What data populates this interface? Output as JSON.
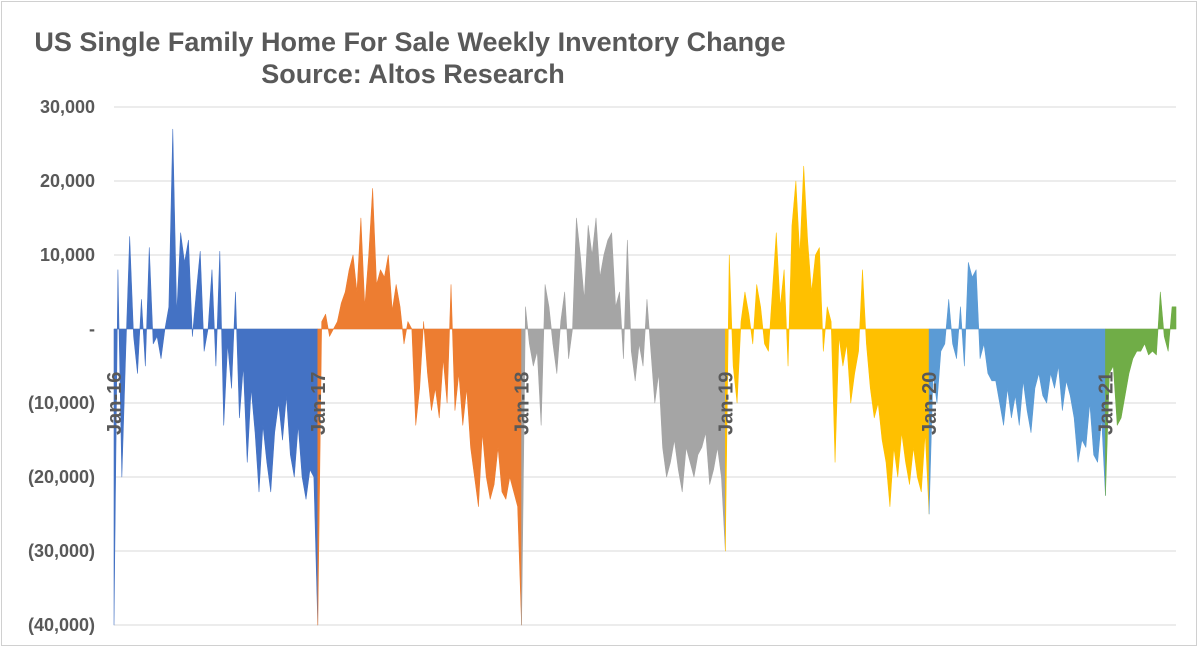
{
  "chart_data": {
    "type": "area",
    "title": "US Single Family Home For Sale Weekly Inventory Change",
    "subtitle": "Source: Altos Research",
    "xlabel": "",
    "ylabel": "",
    "ylim": [
      -40000,
      30000
    ],
    "yticks": [
      30000,
      20000,
      10000,
      0,
      -10000,
      -20000,
      -30000,
      -40000
    ],
    "ytick_labels": [
      "30,000",
      "20,000",
      "10,000",
      "-",
      "(10,000)",
      "(20,000)",
      "(30,000)",
      "(40,000)"
    ],
    "x_tick_labels": [
      "Jan-16",
      "Jan-17",
      "Jan-18",
      "Jan-19",
      "Jan-20",
      "Jan-21"
    ],
    "grid": true,
    "legend": "none",
    "series": [
      {
        "label": "Jan-16",
        "color": "#4472c4",
        "values": [
          -40000,
          8000,
          -20000,
          -3000,
          12500,
          -1000,
          -6000,
          4000,
          -5000,
          11000,
          -2000,
          -1000,
          -4000,
          0,
          3000,
          27000,
          2000,
          13000,
          9000,
          12000,
          -1000,
          5000,
          10500,
          -3000,
          0,
          8000,
          -5000,
          10500,
          -13000,
          -2000,
          -8000,
          5000,
          -12000,
          -5000,
          -18000,
          -8000,
          -14000,
          -22000,
          -13000,
          -18000,
          -22000,
          -14000,
          -10000,
          -15000,
          -9000,
          -17000,
          -20000,
          -13000,
          -20000,
          -23000,
          -19000,
          -20000
        ]
      },
      {
        "label": "Jan-17",
        "color": "#ed7d31",
        "values": [
          -40000,
          1000,
          2000,
          -1000,
          0,
          1000,
          3500,
          5000,
          8000,
          10000,
          5000,
          15000,
          3000,
          10000,
          19000,
          6000,
          8000,
          7000,
          10000,
          2500,
          6000,
          3000,
          -2000,
          1000,
          0,
          -13000,
          -8000,
          1000,
          -6000,
          -11000,
          -8000,
          -12000,
          -4000,
          -10000,
          6000,
          -11000,
          -6000,
          -13000,
          -8000,
          -16000,
          -20000,
          -24000,
          -14000,
          -20000,
          -23000,
          -21000,
          -16000,
          -22000,
          -23000,
          -20000,
          -22000,
          -24000
        ]
      },
      {
        "label": "Jan-18",
        "color": "#a5a5a5",
        "values": [
          -40000,
          3000,
          -2000,
          -5000,
          -3000,
          -13000,
          6000,
          3000,
          -2000,
          -6000,
          1000,
          5000,
          -4000,
          0,
          15000,
          10000,
          4000,
          14000,
          10000,
          15000,
          7000,
          10000,
          12000,
          13000,
          3000,
          5000,
          -4000,
          12000,
          -3000,
          -7000,
          -2000,
          -5000,
          4000,
          -3000,
          -10000,
          -6000,
          -16000,
          -20000,
          -18000,
          -15000,
          -19000,
          -22000,
          -16000,
          -18000,
          -20000,
          -17000,
          -16000,
          -14000,
          -21000,
          -19000,
          -16000,
          -20000
        ]
      },
      {
        "label": "Jan-19",
        "color": "#ffc000",
        "values": [
          -30000,
          10000,
          -5000,
          -10000,
          1000,
          5000,
          2000,
          -2000,
          6000,
          3000,
          -2000,
          -3000,
          5000,
          13000,
          3000,
          8000,
          -5000,
          14000,
          20000,
          10000,
          22000,
          12000,
          5000,
          10000,
          11000,
          -3000,
          3000,
          1000,
          -18000,
          -1000,
          -5000,
          -2000,
          -10000,
          -6000,
          -3000,
          8000,
          -2000,
          -8000,
          -12000,
          -10000,
          -15000,
          -18000,
          -24000,
          -16000,
          -20000,
          -14000,
          -18000,
          -21000,
          -16000,
          -20000,
          -22000,
          -14000
        ]
      },
      {
        "label": "Jan-20",
        "color": "#5b9bd5",
        "values": [
          -25000,
          -6000,
          -10000,
          -3000,
          -2000,
          4000,
          -2000,
          -4000,
          3000,
          -5000,
          9000,
          7000,
          8000,
          -4000,
          -2000,
          -6000,
          -7000,
          -7000,
          -10000,
          -13000,
          -8000,
          -12000,
          -9000,
          -13000,
          -7000,
          -11000,
          -14000,
          -8000,
          -6000,
          -9000,
          -10000,
          -6000,
          -8000,
          -5000,
          -11000,
          -7000,
          -9000,
          -12000,
          -18000,
          -15000,
          -16000,
          -10000,
          -17000,
          -18000,
          -12000
        ]
      },
      {
        "label": "Jan-21",
        "color": "#70ad47",
        "values": [
          -22500,
          -6000,
          -5000,
          -13000,
          -12000,
          -9000,
          -6000,
          -4000,
          -3000,
          -3000,
          -2000,
          -3500,
          -3000,
          -3500,
          5000,
          -1000,
          -3000,
          3000,
          3000
        ]
      }
    ]
  }
}
